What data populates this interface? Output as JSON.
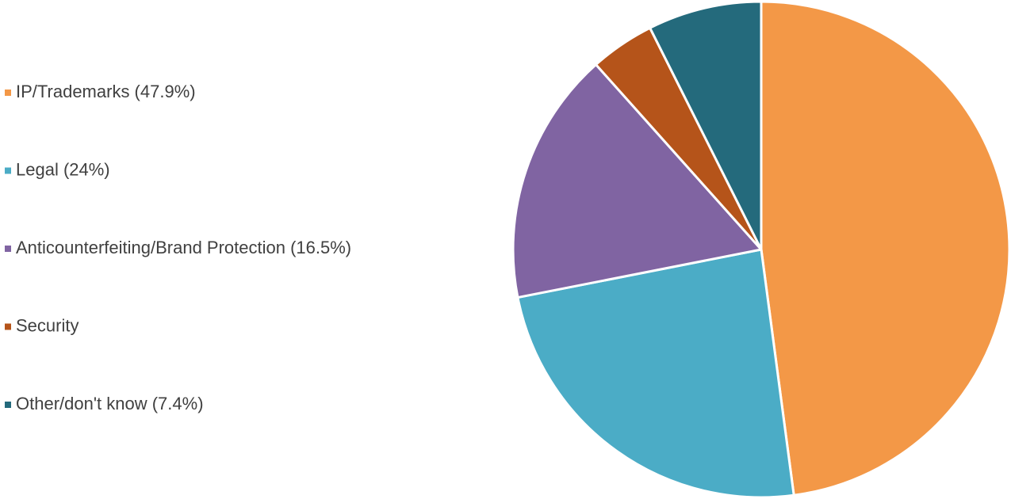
{
  "chart_data": {
    "type": "pie",
    "categories": [
      "IP/Trademarks (47.9%)",
      "Legal (24%)",
      "Anticounterfeiting/Brand Protection (16.5%)",
      "Security",
      "Other/don't know (7.4%)"
    ],
    "values": [
      47.9,
      24,
      16.5,
      4.2,
      7.4
    ],
    "colors": [
      "#f39847",
      "#4bacc6",
      "#8064a2",
      "#b5541a",
      "#246a7c"
    ],
    "legend": "left"
  }
}
